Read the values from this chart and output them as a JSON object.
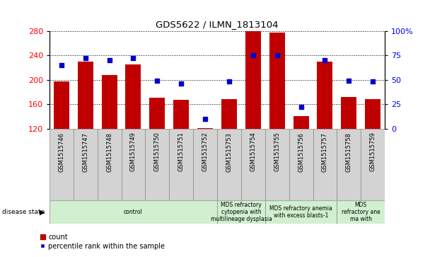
{
  "title": "GDS5622 / ILMN_1813104",
  "samples": [
    "GSM1515746",
    "GSM1515747",
    "GSM1515748",
    "GSM1515749",
    "GSM1515750",
    "GSM1515751",
    "GSM1515752",
    "GSM1515753",
    "GSM1515754",
    "GSM1515755",
    "GSM1515756",
    "GSM1515757",
    "GSM1515758",
    "GSM1515759"
  ],
  "counts": [
    197,
    230,
    207,
    225,
    170,
    167,
    121,
    168,
    279,
    277,
    140,
    230,
    172,
    168
  ],
  "percentiles": [
    65,
    72,
    70,
    72,
    49,
    46,
    10,
    48,
    75,
    75,
    22,
    70,
    49,
    48
  ],
  "ylim_left": [
    120,
    280
  ],
  "ylim_right": [
    0,
    100
  ],
  "yticks_left": [
    120,
    160,
    200,
    240,
    280
  ],
  "yticks_right": [
    0,
    25,
    50,
    75,
    100
  ],
  "bar_color": "#c00000",
  "dot_color": "#0000cc",
  "disease_groups": [
    {
      "label": "control",
      "start": 0,
      "end": 7
    },
    {
      "label": "MDS refractory\ncytopenia with\nmultilineage dysplasia",
      "start": 7,
      "end": 9
    },
    {
      "label": "MDS refractory anemia\nwith excess blasts-1",
      "start": 9,
      "end": 12
    },
    {
      "label": "MDS\nrefractory ane\nma with",
      "start": 12,
      "end": 14
    }
  ],
  "sample_box_color": "#d3d3d3",
  "disease_box_color": "#d0f0d0",
  "legend_count_label": "count",
  "legend_pct_label": "percentile rank within the sample",
  "disease_state_label": "disease state"
}
